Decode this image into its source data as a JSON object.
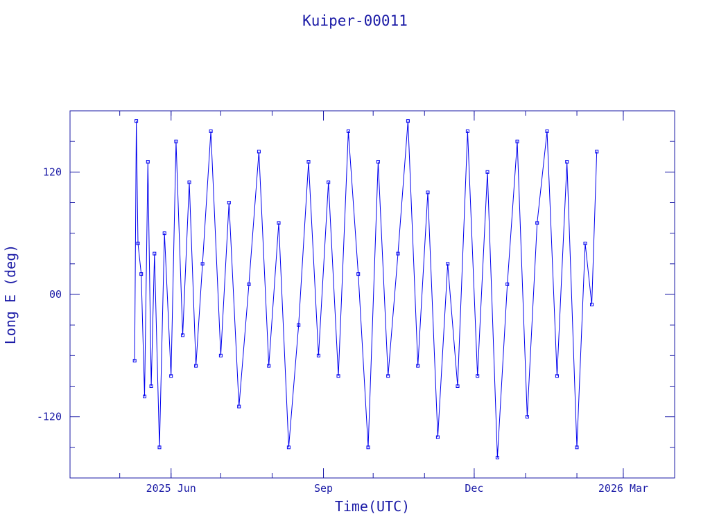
{
  "chart_data": {
    "type": "scatter",
    "title": "Kuiper-00011",
    "xlabel": "Time(UTC)",
    "ylabel": "Long E (deg)",
    "x_range": [
      "2025-04-01",
      "2026-04-01"
    ],
    "ylim": [
      -180,
      180
    ],
    "x_ticks": [
      {
        "date": "2025-06-01",
        "label": "2025 Jun"
      },
      {
        "date": "2025-09-01",
        "label": "Sep"
      },
      {
        "date": "2025-12-01",
        "label": "Dec"
      },
      {
        "date": "2026-03-01",
        "label": "2026 Mar"
      }
    ],
    "y_ticks": [
      {
        "value": 120,
        "label": "120"
      },
      {
        "value": 0,
        "label": "00"
      },
      {
        "value": -120,
        "label": "-120"
      }
    ],
    "grid": false,
    "style": {
      "line_color": "#0000ee",
      "frame_color": "#1a1aa6"
    },
    "series": [
      {
        "x": [
          "2025-05-10",
          "2025-05-11",
          "2025-05-12",
          "2025-05-14",
          "2025-05-16",
          "2025-05-18",
          "2025-05-20",
          "2025-05-22",
          "2025-05-25",
          "2025-05-28",
          "2025-06-01",
          "2025-06-04",
          "2025-06-08",
          "2025-06-12",
          "2025-06-16",
          "2025-06-20",
          "2025-06-25",
          "2025-07-01",
          "2025-07-06",
          "2025-07-12",
          "2025-07-18",
          "2025-07-24",
          "2025-07-30",
          "2025-08-05",
          "2025-08-11",
          "2025-08-17",
          "2025-08-23",
          "2025-08-29",
          "2025-09-04",
          "2025-09-10",
          "2025-09-16",
          "2025-09-22",
          "2025-09-28",
          "2025-10-04",
          "2025-10-10",
          "2025-10-16",
          "2025-10-22",
          "2025-10-28",
          "2025-11-03",
          "2025-11-09",
          "2025-11-15",
          "2025-11-21",
          "2025-11-27",
          "2025-12-03",
          "2025-12-09",
          "2025-12-15",
          "2025-12-21",
          "2025-12-27",
          "2026-01-02",
          "2026-01-08",
          "2026-01-14",
          "2026-01-20",
          "2026-01-26",
          "2026-02-01",
          "2026-02-06",
          "2026-02-10",
          "2026-02-13"
        ],
        "y": [
          -65,
          170,
          50,
          20,
          -100,
          130,
          -90,
          40,
          -150,
          60,
          -80,
          150,
          -40,
          110,
          -70,
          30,
          160,
          -60,
          90,
          -110,
          10,
          140,
          -70,
          70,
          -150,
          -30,
          130,
          -60,
          110,
          -80,
          160,
          20,
          -150,
          130,
          -80,
          40,
          170,
          -70,
          100,
          -140,
          30,
          -90,
          160,
          -80,
          120,
          -160,
          10,
          150,
          -120,
          70,
          160,
          -80,
          130,
          -150,
          50,
          -10,
          140
        ]
      }
    ]
  }
}
